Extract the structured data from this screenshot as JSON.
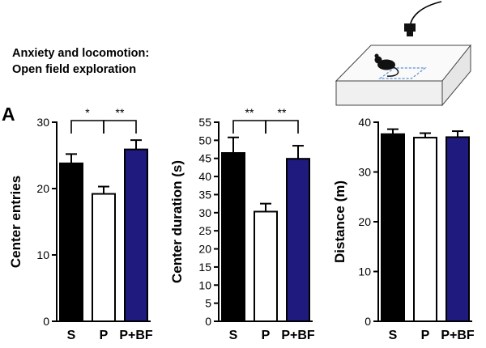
{
  "figure": {
    "title_line1": "Anxiety and locomotion:",
    "title_line2": "Open field exploration",
    "panel_label": "A"
  },
  "chart_data": [
    {
      "type": "bar",
      "title": "",
      "xlabel": "",
      "ylabel": "Center entries",
      "categories": [
        "S",
        "P",
        "P+BF"
      ],
      "values": [
        23.8,
        19.2,
        25.9
      ],
      "errors": [
        1.4,
        1.1,
        1.4
      ],
      "bar_colors": [
        "#000000",
        "#ffffff",
        "#1e1a7e"
      ],
      "ylim": [
        0,
        30
      ],
      "yticks": [
        0,
        10,
        20,
        30
      ],
      "significance": [
        {
          "from": 0,
          "to": 1,
          "label": "*"
        },
        {
          "from": 1,
          "to": 2,
          "label": "**"
        }
      ]
    },
    {
      "type": "bar",
      "title": "",
      "xlabel": "",
      "ylabel": "Center duration (s)",
      "categories": [
        "S",
        "P",
        "P+BF"
      ],
      "values": [
        46.5,
        30.3,
        44.9
      ],
      "errors": [
        4.3,
        2.2,
        3.6
      ],
      "bar_colors": [
        "#000000",
        "#ffffff",
        "#1e1a7e"
      ],
      "ylim": [
        0,
        55
      ],
      "yticks": [
        0,
        5,
        10,
        15,
        20,
        25,
        30,
        35,
        40,
        45,
        50,
        55
      ],
      "significance": [
        {
          "from": 0,
          "to": 1,
          "label": "**"
        },
        {
          "from": 1,
          "to": 2,
          "label": "**"
        }
      ]
    },
    {
      "type": "bar",
      "title": "",
      "xlabel": "",
      "ylabel": "Distance (m)",
      "categories": [
        "S",
        "P",
        "P+BF"
      ],
      "values": [
        37.6,
        36.9,
        37.0
      ],
      "errors": [
        1.0,
        0.9,
        1.2
      ],
      "bar_colors": [
        "#000000",
        "#ffffff",
        "#1e1a7e"
      ],
      "ylim": [
        0,
        40
      ],
      "yticks": [
        0,
        10,
        20,
        30,
        40
      ],
      "significance": []
    }
  ]
}
